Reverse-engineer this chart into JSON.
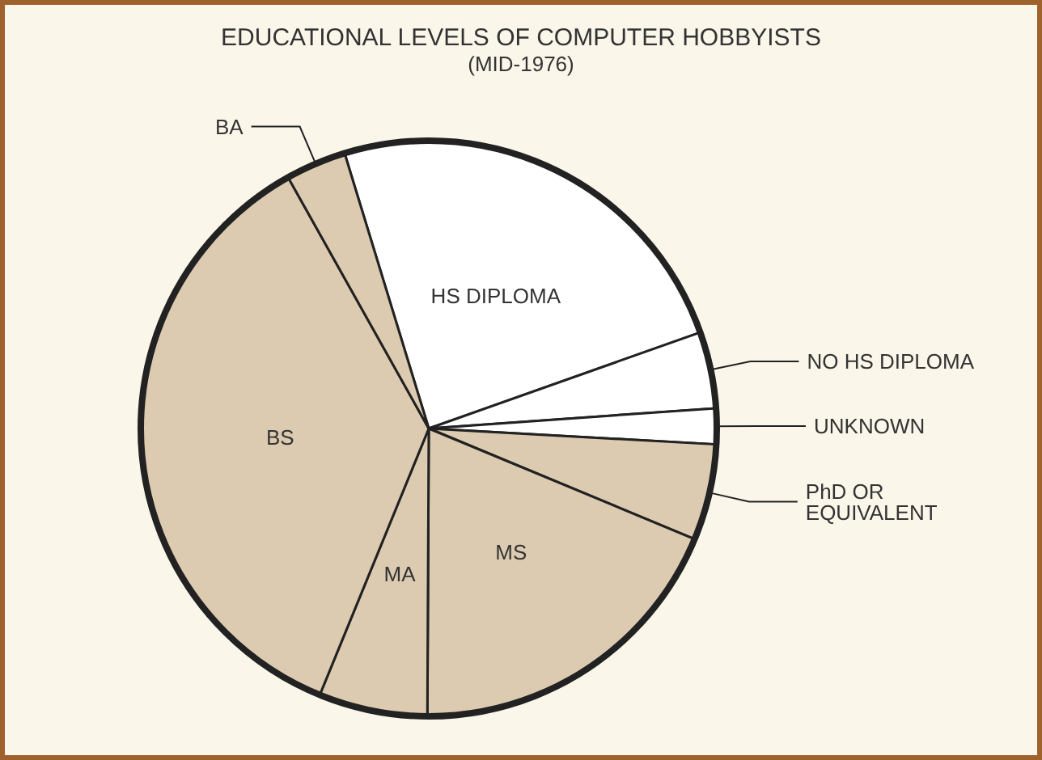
{
  "chart_data": {
    "type": "pie",
    "title": "EDUCATIONAL LEVELS OF COMPUTER HOBBYISTS",
    "subtitle": "(MID-1976)",
    "categories": [
      "HS DIPLOMA",
      "NO HS DIPLOMA",
      "UNKNOWN",
      "PhD OR EQUIVALENT",
      "MS",
      "MA",
      "BS",
      "BA"
    ],
    "values": [
      24.3,
      4.3,
      2.0,
      5.4,
      18.8,
      6.1,
      35.7,
      3.4
    ],
    "colors": [
      "#ffffff",
      "#ffffff",
      "#ffffff",
      "#dccbb0",
      "#dccbb0",
      "#dccbb0",
      "#dccbb0",
      "#dccbb0"
    ],
    "legend": false
  }
}
